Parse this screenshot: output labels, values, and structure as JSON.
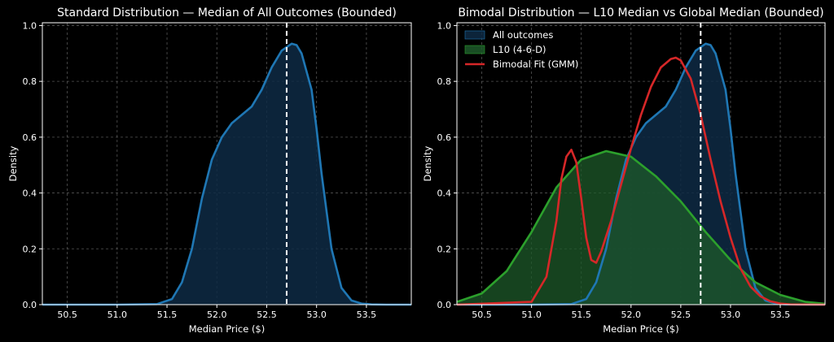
{
  "chart_data": [
    {
      "type": "area",
      "title": "Standard Distribution — Median of All Outcomes (Bounded)",
      "xlabel": "Median Price ($)",
      "ylabel": "Density",
      "xlim": [
        50.25,
        53.95
      ],
      "ylim": [
        0,
        1.01
      ],
      "xticks": [
        "50.5",
        "51.0",
        "51.5",
        "52.0",
        "52.5",
        "53.0",
        "53.5"
      ],
      "yticks": [
        "0.0",
        "0.2",
        "0.4",
        "0.6",
        "0.8",
        "1.0"
      ],
      "vline": 52.7,
      "series": [
        {
          "name": "All outcomes",
          "color": "#1f77b4",
          "fill": "#0e2a44",
          "x": [
            50.25,
            51.0,
            51.4,
            51.55,
            51.65,
            51.75,
            51.85,
            51.95,
            52.05,
            52.15,
            52.25,
            52.35,
            52.45,
            52.55,
            52.65,
            52.75,
            52.8,
            52.85,
            52.95,
            53.0,
            53.05,
            53.15,
            53.25,
            53.35,
            53.45,
            53.55,
            53.7,
            53.95
          ],
          "y": [
            0.0,
            0.0,
            0.002,
            0.02,
            0.08,
            0.2,
            0.38,
            0.52,
            0.6,
            0.65,
            0.68,
            0.71,
            0.77,
            0.85,
            0.91,
            0.935,
            0.93,
            0.9,
            0.77,
            0.63,
            0.47,
            0.2,
            0.06,
            0.015,
            0.004,
            0.001,
            0.0,
            0.0
          ]
        }
      ]
    },
    {
      "type": "area",
      "title": "Bimodal Distribution — L10 Median vs Global Median (Bounded)",
      "xlabel": "Median Price ($)",
      "ylabel": "Density",
      "xlim": [
        50.25,
        53.95
      ],
      "ylim": [
        0,
        1.01
      ],
      "xticks": [
        "50.5",
        "51.0",
        "51.5",
        "52.0",
        "52.5",
        "53.0",
        "53.5"
      ],
      "yticks": [
        "0.0",
        "0.2",
        "0.4",
        "0.6",
        "0.8",
        "1.0"
      ],
      "vline": 52.7,
      "legend": "top-left",
      "series": [
        {
          "name": "All outcomes",
          "legend_kind": "patch",
          "color": "#1f77b4",
          "fill": "#0e2a44",
          "x": [
            50.25,
            51.0,
            51.4,
            51.55,
            51.65,
            51.75,
            51.85,
            51.95,
            52.05,
            52.15,
            52.25,
            52.35,
            52.45,
            52.55,
            52.65,
            52.75,
            52.8,
            52.85,
            52.95,
            53.0,
            53.05,
            53.15,
            53.25,
            53.35,
            53.45,
            53.55,
            53.7,
            53.95
          ],
          "y": [
            0.0,
            0.0,
            0.002,
            0.02,
            0.08,
            0.2,
            0.38,
            0.52,
            0.6,
            0.65,
            0.68,
            0.71,
            0.77,
            0.85,
            0.91,
            0.935,
            0.93,
            0.9,
            0.77,
            0.63,
            0.47,
            0.2,
            0.06,
            0.015,
            0.004,
            0.001,
            0.0,
            0.0
          ]
        },
        {
          "name": "L10 (4-6-D)",
          "legend_kind": "patch",
          "color": "#2ca02c",
          "fill": "#1d5a2a",
          "x": [
            50.25,
            50.5,
            50.75,
            51.0,
            51.25,
            51.5,
            51.75,
            52.0,
            52.25,
            52.5,
            52.75,
            53.0,
            53.25,
            53.5,
            53.75,
            53.95
          ],
          "y": [
            0.01,
            0.04,
            0.12,
            0.26,
            0.42,
            0.52,
            0.55,
            0.53,
            0.46,
            0.37,
            0.26,
            0.16,
            0.08,
            0.035,
            0.01,
            0.003
          ]
        },
        {
          "name": "Bimodal Fit (GMM)",
          "legend_kind": "line",
          "color": "#d62728",
          "x": [
            50.25,
            51.0,
            51.15,
            51.25,
            51.3,
            51.35,
            51.4,
            51.45,
            51.5,
            51.55,
            51.6,
            51.65,
            51.7,
            51.8,
            51.9,
            52.0,
            52.1,
            52.2,
            52.3,
            52.4,
            52.45,
            52.5,
            52.6,
            52.7,
            52.8,
            52.9,
            53.0,
            53.1,
            53.2,
            53.3,
            53.4,
            53.5,
            53.6,
            53.95
          ],
          "y": [
            0.0,
            0.01,
            0.1,
            0.3,
            0.45,
            0.53,
            0.555,
            0.51,
            0.38,
            0.24,
            0.16,
            0.15,
            0.19,
            0.3,
            0.43,
            0.56,
            0.68,
            0.78,
            0.85,
            0.88,
            0.885,
            0.875,
            0.81,
            0.68,
            0.52,
            0.37,
            0.24,
            0.13,
            0.065,
            0.03,
            0.012,
            0.004,
            0.001,
            0.0
          ]
        }
      ]
    }
  ]
}
